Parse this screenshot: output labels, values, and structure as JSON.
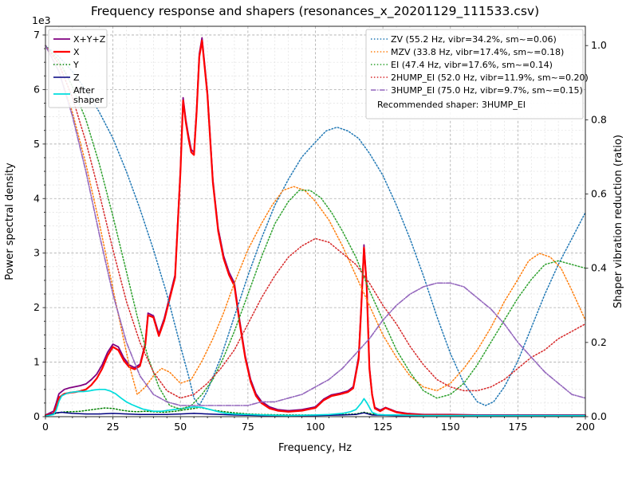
{
  "chart_data": {
    "type": "line",
    "title": "Frequency response and shapers (resonances_x_20201129_111533.csv)",
    "xlabel": "Frequency, Hz",
    "ylabel_left": "Power spectral density",
    "ylabel_right": "Shaper vibration reduction (ratio)",
    "offset_text": "1e3",
    "x_range": [
      0,
      200
    ],
    "left_range": [
      0,
      7.16
    ],
    "right_range": [
      0,
      1.052
    ],
    "x_ticks": [
      0,
      25,
      50,
      75,
      100,
      125,
      150,
      175,
      200
    ],
    "left_ticks": [
      0,
      1,
      2,
      3,
      4,
      5,
      6,
      7
    ],
    "right_ticks": [
      0.0,
      0.2,
      0.4,
      0.6,
      0.8,
      1.0
    ],
    "grid": {
      "minor_x": 5,
      "major_x": 25,
      "minor_left": 0.25,
      "major_left": 1
    },
    "legend_footer": "Recommended shaper: 3HUMP_EI",
    "series": [
      {
        "id": "xyz",
        "name": "X+Y+Z",
        "legend": "sensors",
        "axis": "left",
        "color": "#800080",
        "style": "solid",
        "width": 1.8,
        "x": [
          0,
          3,
          4,
          5,
          7,
          9,
          11,
          13,
          15,
          17,
          19,
          21,
          23,
          25,
          27,
          29,
          31,
          33,
          35,
          37,
          38,
          40,
          42,
          44,
          46,
          48,
          50,
          51,
          52,
          53,
          54,
          55,
          56,
          57,
          58,
          59,
          60,
          62,
          64,
          66,
          68,
          70,
          72,
          74,
          76,
          78,
          80,
          83,
          86,
          90,
          95,
          100,
          103,
          106,
          109,
          112,
          114,
          116,
          117,
          118,
          119,
          120,
          121,
          122,
          124,
          126,
          128,
          130,
          134,
          140,
          150,
          160,
          170,
          180,
          190,
          200
        ],
        "y": [
          0.03,
          0.1,
          0.25,
          0.42,
          0.5,
          0.53,
          0.55,
          0.57,
          0.6,
          0.68,
          0.78,
          0.95,
          1.18,
          1.33,
          1.28,
          1.08,
          0.95,
          0.9,
          0.96,
          1.35,
          1.9,
          1.85,
          1.52,
          1.8,
          2.2,
          2.6,
          4.55,
          5.85,
          5.45,
          5.15,
          4.9,
          4.85,
          5.65,
          6.65,
          6.95,
          6.45,
          5.95,
          4.35,
          3.45,
          2.95,
          2.65,
          2.45,
          1.75,
          1.12,
          0.68,
          0.42,
          0.28,
          0.18,
          0.13,
          0.11,
          0.13,
          0.18,
          0.32,
          0.4,
          0.43,
          0.47,
          0.55,
          1.1,
          2.05,
          3.15,
          2.45,
          0.92,
          0.42,
          0.17,
          0.12,
          0.17,
          0.13,
          0.09,
          0.06,
          0.04,
          0.04,
          0.03,
          0.03,
          0.03,
          0.03,
          0.03
        ]
      },
      {
        "id": "x",
        "name": "X",
        "legend": "sensors",
        "axis": "left",
        "color": "#ff0000",
        "style": "solid",
        "width": 2.2,
        "x": [
          0,
          3,
          4,
          5,
          7,
          9,
          11,
          13,
          15,
          17,
          19,
          21,
          23,
          25,
          27,
          29,
          31,
          33,
          35,
          37,
          38,
          40,
          42,
          44,
          46,
          48,
          50,
          51,
          52,
          53,
          54,
          55,
          56,
          57,
          58,
          59,
          60,
          62,
          64,
          66,
          68,
          70,
          72,
          74,
          76,
          78,
          80,
          83,
          86,
          90,
          95,
          100,
          103,
          106,
          109,
          112,
          114,
          116,
          117,
          118,
          119,
          120,
          121,
          122,
          124,
          126,
          128,
          130,
          134,
          140,
          150,
          160,
          170,
          180,
          190,
          200
        ],
        "y": [
          0.02,
          0.06,
          0.18,
          0.35,
          0.42,
          0.44,
          0.45,
          0.47,
          0.5,
          0.58,
          0.7,
          0.88,
          1.12,
          1.28,
          1.22,
          1.03,
          0.91,
          0.87,
          0.93,
          1.32,
          1.86,
          1.82,
          1.48,
          1.76,
          2.16,
          2.55,
          4.5,
          5.8,
          5.4,
          5.1,
          4.85,
          4.8,
          5.6,
          6.6,
          6.9,
          6.4,
          5.9,
          4.3,
          3.4,
          2.9,
          2.6,
          2.4,
          1.7,
          1.08,
          0.64,
          0.38,
          0.25,
          0.15,
          0.11,
          0.09,
          0.11,
          0.16,
          0.3,
          0.38,
          0.41,
          0.45,
          0.52,
          1.05,
          2.0,
          3.1,
          2.4,
          0.88,
          0.4,
          0.15,
          0.1,
          0.16,
          0.12,
          0.08,
          0.05,
          0.03,
          0.03,
          0.02,
          0.02,
          0.02,
          0.02,
          0.02
        ]
      },
      {
        "id": "y",
        "name": "Y",
        "legend": "sensors",
        "axis": "left",
        "color": "#008000",
        "style": "dotted",
        "width": 1.5,
        "x": [
          0,
          4,
          6,
          8,
          10,
          13,
          16,
          19,
          22,
          25,
          28,
          31,
          34,
          37,
          40,
          44,
          48,
          52,
          55,
          57,
          59,
          62,
          65,
          70,
          75,
          80,
          90,
          100,
          110,
          115,
          118,
          121,
          125,
          130,
          140,
          150,
          160,
          180,
          200
        ],
        "y": [
          0.01,
          0.06,
          0.08,
          0.09,
          0.09,
          0.1,
          0.12,
          0.14,
          0.16,
          0.15,
          0.12,
          0.1,
          0.09,
          0.1,
          0.09,
          0.08,
          0.1,
          0.13,
          0.15,
          0.17,
          0.15,
          0.12,
          0.1,
          0.07,
          0.05,
          0.04,
          0.03,
          0.03,
          0.04,
          0.05,
          0.08,
          0.05,
          0.03,
          0.03,
          0.02,
          0.02,
          0.02,
          0.02,
          0.02
        ]
      },
      {
        "id": "z",
        "name": "Z",
        "legend": "sensors",
        "axis": "left",
        "color": "#000080",
        "style": "solid",
        "width": 1.5,
        "x": [
          0,
          4,
          6,
          8,
          10,
          15,
          20,
          25,
          30,
          35,
          40,
          45,
          50,
          55,
          60,
          70,
          80,
          90,
          100,
          110,
          115,
          118,
          121,
          130,
          140,
          160,
          180,
          200
        ],
        "y": [
          0.01,
          0.07,
          0.08,
          0.07,
          0.06,
          0.05,
          0.05,
          0.06,
          0.05,
          0.04,
          0.04,
          0.04,
          0.05,
          0.06,
          0.05,
          0.03,
          0.02,
          0.02,
          0.02,
          0.03,
          0.04,
          0.07,
          0.03,
          0.02,
          0.02,
          0.02,
          0.02,
          0.02
        ]
      },
      {
        "id": "after-shaper",
        "name": "After\nshaper",
        "legend": "sensors",
        "axis": "left",
        "color": "#00dddd",
        "style": "solid",
        "width": 1.7,
        "x": [
          0,
          3,
          4,
          5,
          6,
          8,
          10,
          12,
          14,
          16,
          18,
          20,
          22,
          24,
          26,
          28,
          30,
          32,
          34,
          36,
          38,
          40,
          43,
          46,
          49,
          52,
          55,
          58,
          61,
          64,
          67,
          70,
          75,
          80,
          90,
          100,
          105,
          110,
          113,
          115,
          117,
          118,
          119,
          121,
          123,
          126,
          130,
          140,
          150,
          160,
          170,
          180,
          190,
          200
        ],
        "y": [
          0.01,
          0.04,
          0.12,
          0.28,
          0.38,
          0.43,
          0.45,
          0.46,
          0.46,
          0.47,
          0.49,
          0.5,
          0.5,
          0.47,
          0.42,
          0.34,
          0.27,
          0.22,
          0.18,
          0.14,
          0.12,
          0.1,
          0.1,
          0.12,
          0.14,
          0.16,
          0.18,
          0.17,
          0.13,
          0.09,
          0.06,
          0.05,
          0.04,
          0.03,
          0.02,
          0.03,
          0.04,
          0.06,
          0.09,
          0.13,
          0.25,
          0.33,
          0.26,
          0.08,
          0.04,
          0.03,
          0.03,
          0.02,
          0.02,
          0.02,
          0.02,
          0.02,
          0.02,
          0.02
        ]
      },
      {
        "id": "zv",
        "name": "ZV (55.2 Hz, vibr=34.2%, sm~=0.06)",
        "legend": "shapers",
        "axis": "right",
        "color": "#1f77b4",
        "style": "dotted",
        "width": 1.5,
        "x": [
          0,
          5,
          10,
          15,
          20,
          25,
          30,
          35,
          40,
          45,
          50,
          53,
          55,
          57,
          60,
          65,
          70,
          75,
          80,
          85,
          90,
          95,
          100,
          104,
          108,
          112,
          116,
          120,
          125,
          130,
          135,
          140,
          145,
          150,
          155,
          160,
          163,
          166,
          170,
          175,
          180,
          185,
          190,
          195,
          200
        ],
        "y": [
          1.0,
          0.97,
          0.93,
          0.88,
          0.82,
          0.75,
          0.66,
          0.56,
          0.45,
          0.33,
          0.19,
          0.11,
          0.05,
          0.03,
          0.07,
          0.16,
          0.27,
          0.38,
          0.48,
          0.57,
          0.64,
          0.7,
          0.74,
          0.77,
          0.78,
          0.77,
          0.75,
          0.71,
          0.65,
          0.57,
          0.48,
          0.38,
          0.27,
          0.17,
          0.09,
          0.04,
          0.03,
          0.04,
          0.08,
          0.15,
          0.24,
          0.33,
          0.41,
          0.48,
          0.55
        ]
      },
      {
        "id": "mzv",
        "name": "MZV (33.8 Hz, vibr=17.4%, sm~=0.18)",
        "legend": "shapers",
        "axis": "right",
        "color": "#ff7f0e",
        "style": "dotted",
        "width": 1.5,
        "x": [
          0,
          5,
          10,
          15,
          20,
          24,
          28,
          31,
          34,
          37,
          40,
          43,
          46,
          50,
          54,
          58,
          62,
          66,
          70,
          75,
          80,
          84,
          88,
          92,
          96,
          100,
          105,
          110,
          115,
          120,
          125,
          130,
          135,
          140,
          145,
          150,
          155,
          160,
          165,
          170,
          175,
          179,
          183,
          187,
          191,
          195,
          200
        ],
        "y": [
          1.0,
          0.93,
          0.82,
          0.68,
          0.52,
          0.38,
          0.24,
          0.14,
          0.06,
          0.08,
          0.11,
          0.13,
          0.12,
          0.09,
          0.1,
          0.15,
          0.21,
          0.28,
          0.36,
          0.45,
          0.52,
          0.57,
          0.61,
          0.62,
          0.61,
          0.58,
          0.53,
          0.46,
          0.38,
          0.3,
          0.22,
          0.16,
          0.11,
          0.08,
          0.07,
          0.09,
          0.13,
          0.18,
          0.24,
          0.31,
          0.37,
          0.42,
          0.44,
          0.43,
          0.4,
          0.34,
          0.26
        ]
      },
      {
        "id": "ei",
        "name": "EI (47.4 Hz, vibr=17.6%, sm~=0.14)",
        "legend": "shapers",
        "axis": "right",
        "color": "#2ca02c",
        "style": "dotted",
        "width": 1.5,
        "x": [
          0,
          5,
          10,
          15,
          20,
          25,
          30,
          34,
          38,
          42,
          46,
          50,
          54,
          58,
          62,
          66,
          70,
          75,
          80,
          85,
          90,
          94,
          98,
          102,
          106,
          110,
          115,
          120,
          125,
          130,
          135,
          140,
          145,
          150,
          155,
          160,
          165,
          170,
          175,
          180,
          185,
          190,
          195,
          200
        ],
        "y": [
          1.0,
          0.96,
          0.89,
          0.8,
          0.68,
          0.54,
          0.39,
          0.27,
          0.16,
          0.08,
          0.03,
          0.02,
          0.03,
          0.06,
          0.1,
          0.16,
          0.23,
          0.33,
          0.43,
          0.52,
          0.58,
          0.61,
          0.61,
          0.59,
          0.55,
          0.5,
          0.43,
          0.34,
          0.26,
          0.18,
          0.12,
          0.07,
          0.05,
          0.06,
          0.09,
          0.14,
          0.2,
          0.26,
          0.32,
          0.37,
          0.41,
          0.42,
          0.41,
          0.4
        ]
      },
      {
        "id": "2hump-ei",
        "name": "2HUMP_EI (52.0 Hz, vibr=11.9%, sm~=0.20)",
        "legend": "shapers",
        "axis": "right",
        "color": "#d62728",
        "style": "dotted",
        "width": 1.5,
        "x": [
          0,
          5,
          10,
          15,
          20,
          25,
          30,
          35,
          40,
          45,
          50,
          55,
          60,
          65,
          70,
          75,
          80,
          85,
          90,
          95,
          100,
          105,
          110,
          115,
          120,
          125,
          130,
          135,
          140,
          145,
          150,
          155,
          160,
          165,
          170,
          175,
          180,
          185,
          190,
          195,
          200
        ],
        "y": [
          1.0,
          0.95,
          0.86,
          0.74,
          0.6,
          0.45,
          0.31,
          0.2,
          0.12,
          0.07,
          0.05,
          0.06,
          0.09,
          0.13,
          0.18,
          0.25,
          0.32,
          0.38,
          0.43,
          0.46,
          0.48,
          0.47,
          0.44,
          0.41,
          0.36,
          0.3,
          0.25,
          0.19,
          0.14,
          0.1,
          0.08,
          0.07,
          0.07,
          0.08,
          0.1,
          0.13,
          0.16,
          0.18,
          0.21,
          0.23,
          0.25
        ]
      },
      {
        "id": "3hump-ei",
        "name": "3HUMP_EI (75.0 Hz, vibr=9.7%, sm~=0.15)",
        "legend": "shapers",
        "axis": "right",
        "color": "#9467bd",
        "style": "dashdot",
        "width": 1.6,
        "x": [
          0,
          5,
          10,
          15,
          20,
          25,
          30,
          35,
          40,
          45,
          50,
          55,
          60,
          65,
          70,
          75,
          80,
          85,
          90,
          95,
          100,
          105,
          110,
          115,
          120,
          125,
          130,
          135,
          140,
          145,
          150,
          155,
          160,
          165,
          170,
          175,
          180,
          185,
          190,
          195,
          200
        ],
        "y": [
          1.0,
          0.93,
          0.81,
          0.66,
          0.49,
          0.33,
          0.2,
          0.11,
          0.06,
          0.04,
          0.03,
          0.03,
          0.03,
          0.03,
          0.03,
          0.03,
          0.04,
          0.04,
          0.05,
          0.06,
          0.08,
          0.1,
          0.13,
          0.17,
          0.21,
          0.26,
          0.3,
          0.33,
          0.35,
          0.36,
          0.36,
          0.35,
          0.32,
          0.29,
          0.25,
          0.2,
          0.16,
          0.12,
          0.09,
          0.06,
          0.05
        ]
      }
    ]
  }
}
